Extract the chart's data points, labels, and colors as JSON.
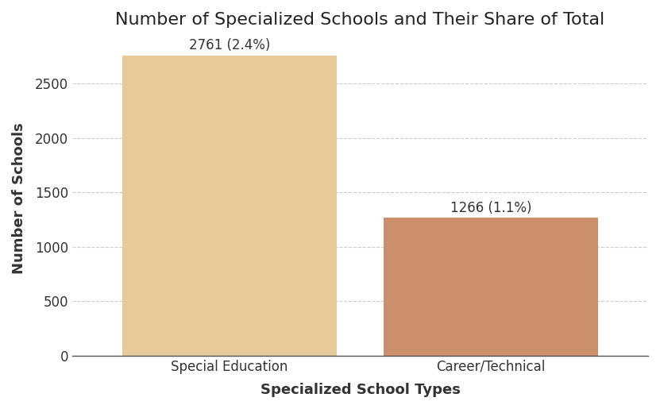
{
  "categories": [
    "Special Education",
    "Career/Technical"
  ],
  "values": [
    2761,
    1266
  ],
  "labels": [
    "2761 (2.4%)",
    "1266 (1.1%)"
  ],
  "bar_colors": [
    "#E8C99A",
    "#CC8F6E"
  ],
  "title": "Number of Specialized Schools and Their Share of Total",
  "xlabel": "Specialized School Types",
  "ylabel": "Number of Schools",
  "ylim": [
    0,
    2900
  ],
  "yticks": [
    0,
    500,
    1000,
    1500,
    2000,
    2500
  ],
  "title_fontsize": 16,
  "label_fontsize": 13,
  "tick_fontsize": 12,
  "bar_width": 0.82,
  "background_color": "#ffffff",
  "grid_color": "#cccccc",
  "annotation_fontsize": 12
}
